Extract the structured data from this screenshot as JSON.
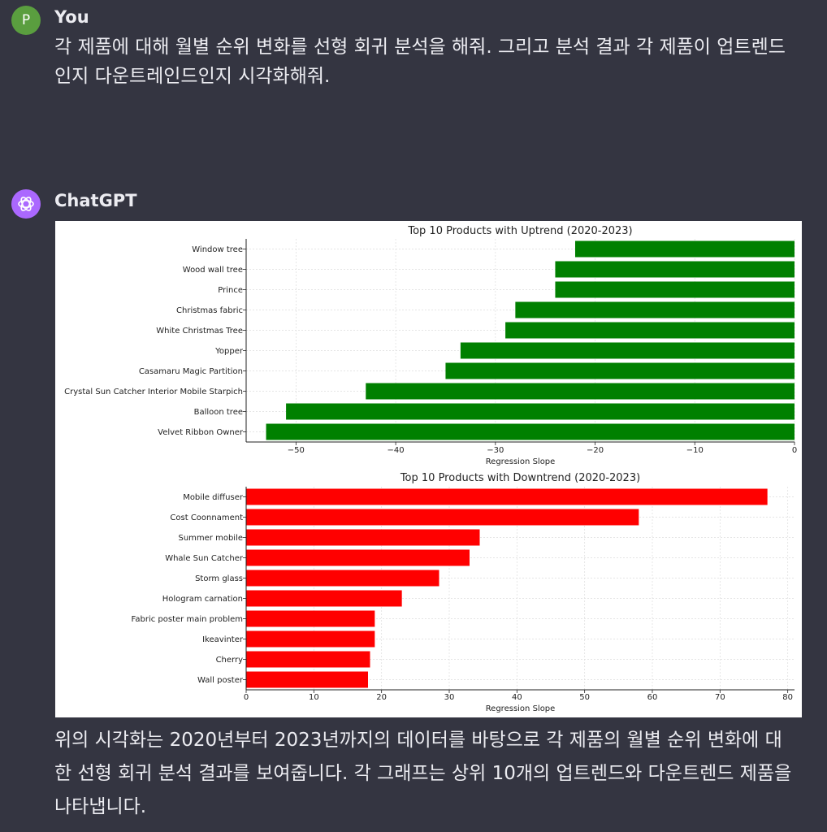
{
  "user": {
    "avatar_letter": "P",
    "name": "You",
    "message": "각 제품에 대해 월별 순위 변화를 선형 회귀 분석을 해줘. 그리고 분석 결과 각 제품이 업트렌드인지 다운트레인드인지 시각화해줘."
  },
  "assistant": {
    "name": "ChatGPT",
    "avatar_icon": "openai-logo-icon",
    "message": "위의 시각화는 2020년부터 2023년까지의 데이터를 바탕으로 각 제품의 월별 순위 변화에 대한 선형 회귀 분석 결과를 보여줍니다. 각 그래프는 상위 10개의 업트렌드와 다운트렌드 제품을 나타냅니다."
  },
  "colors": {
    "background": "#343541",
    "uptrend_bar": "#008000",
    "downtrend_bar": "#ff0000",
    "user_avatar": "#5a9e3f",
    "gpt_avatar": "#ab68ff"
  },
  "chart_data": [
    {
      "type": "bar",
      "orientation": "horizontal",
      "title": "Top 10 Products with Uptrend (2020-2023)",
      "xlabel": "Regression Slope",
      "ylabel": "",
      "xlim": [
        -55,
        0
      ],
      "xticks": [
        -50,
        -40,
        -30,
        -20,
        -10,
        0
      ],
      "xtick_labels": [
        "−50",
        "−40",
        "−30",
        "−20",
        "−10",
        "0"
      ],
      "grid": true,
      "color": "#008000",
      "categories": [
        "Window tree",
        "Wood wall tree",
        "Prince",
        "Christmas fabric",
        "White Christmas Tree",
        "Yopper",
        "Casamaru Magic Partition",
        "Crystal Sun Catcher Interior Mobile Starpich",
        "Balloon tree",
        "Velvet Ribbon Owner"
      ],
      "values": [
        -22,
        -24,
        -24,
        -28,
        -29,
        -33.5,
        -35,
        -43,
        -51,
        -53
      ]
    },
    {
      "type": "bar",
      "orientation": "horizontal",
      "title": "Top 10 Products with Downtrend (2020-2023)",
      "xlabel": "Regression Slope",
      "ylabel": "",
      "xlim": [
        0,
        81
      ],
      "xticks": [
        0,
        10,
        20,
        30,
        40,
        50,
        60,
        70,
        80
      ],
      "xtick_labels": [
        "0",
        "10",
        "20",
        "30",
        "40",
        "50",
        "60",
        "70",
        "80"
      ],
      "grid": true,
      "color": "#ff0000",
      "categories": [
        "Mobile diffuser",
        "Cost Coonnament",
        "Summer mobile",
        "Whale Sun Catcher",
        "Storm glass",
        "Hologram carnation",
        "Fabric poster main problem",
        "Ikeavinter",
        "Cherry",
        "Wall poster"
      ],
      "values": [
        77,
        58,
        34.5,
        33,
        28.5,
        23,
        19,
        19,
        18.3,
        18
      ]
    }
  ]
}
